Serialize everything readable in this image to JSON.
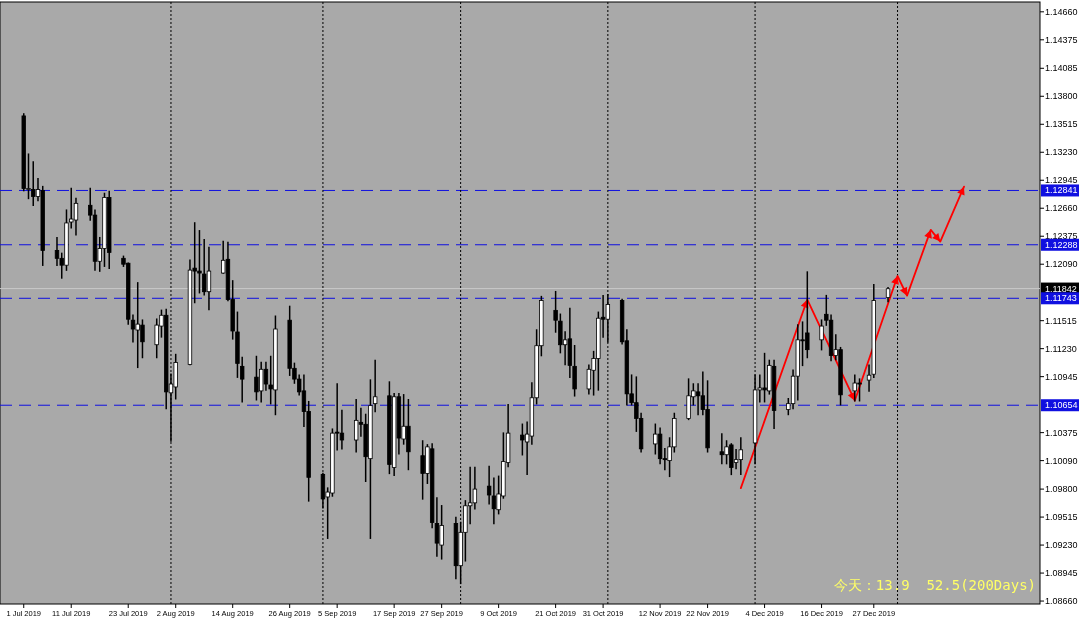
{
  "chart_data": {
    "type": "candlestick",
    "x": [
      "2019-07-01",
      "2019-07-02",
      "2019-07-03",
      "2019-07-04",
      "2019-07-05",
      "2019-07-08",
      "2019-07-09",
      "2019-07-10",
      "2019-07-11",
      "2019-07-12",
      "2019-07-15",
      "2019-07-16",
      "2019-07-17",
      "2019-07-18",
      "2019-07-19",
      "2019-07-22",
      "2019-07-23",
      "2019-07-24",
      "2019-07-25",
      "2019-07-26",
      "2019-07-29",
      "2019-07-30",
      "2019-07-31",
      "2019-08-01",
      "2019-08-02",
      "2019-08-05",
      "2019-08-06",
      "2019-08-07",
      "2019-08-08",
      "2019-08-09",
      "2019-08-12",
      "2019-08-13",
      "2019-08-14",
      "2019-08-15",
      "2019-08-16",
      "2019-08-19",
      "2019-08-20",
      "2019-08-21",
      "2019-08-22",
      "2019-08-23",
      "2019-08-26",
      "2019-08-27",
      "2019-08-28",
      "2019-08-29",
      "2019-08-30",
      "2019-09-02",
      "2019-09-03",
      "2019-09-04",
      "2019-09-05",
      "2019-09-06",
      "2019-09-09",
      "2019-09-10",
      "2019-09-11",
      "2019-09-12",
      "2019-09-13",
      "2019-09-16",
      "2019-09-17",
      "2019-09-18",
      "2019-09-19",
      "2019-09-20",
      "2019-09-23",
      "2019-09-24",
      "2019-09-25",
      "2019-09-26",
      "2019-09-27",
      "2019-09-30",
      "2019-10-01",
      "2019-10-02",
      "2019-10-03",
      "2019-10-04",
      "2019-10-07",
      "2019-10-08",
      "2019-10-09",
      "2019-10-10",
      "2019-10-11",
      "2019-10-14",
      "2019-10-15",
      "2019-10-16",
      "2019-10-17",
      "2019-10-18",
      "2019-10-21",
      "2019-10-22",
      "2019-10-23",
      "2019-10-24",
      "2019-10-25",
      "2019-10-28",
      "2019-10-29",
      "2019-10-30",
      "2019-10-31",
      "2019-11-01",
      "2019-11-04",
      "2019-11-05",
      "2019-11-06",
      "2019-11-07",
      "2019-11-08",
      "2019-11-11",
      "2019-11-12",
      "2019-11-13",
      "2019-11-14",
      "2019-11-15",
      "2019-11-18",
      "2019-11-19",
      "2019-11-20",
      "2019-11-21",
      "2019-11-22",
      "2019-11-25",
      "2019-11-26",
      "2019-11-27",
      "2019-11-28",
      "2019-11-29",
      "2019-12-02",
      "2019-12-03",
      "2019-12-04",
      "2019-12-05",
      "2019-12-06",
      "2019-12-09",
      "2019-12-10",
      "2019-12-11",
      "2019-12-12",
      "2019-12-13",
      "2019-12-16",
      "2019-12-17",
      "2019-12-18",
      "2019-12-19",
      "2019-12-20",
      "2019-12-23",
      "2019-12-24",
      "2019-12-26",
      "2019-12-27",
      "2019-12-30"
    ],
    "ohlc": [
      [
        1.136,
        1.1362,
        1.1284,
        1.1286
      ],
      [
        1.1285,
        1.1321,
        1.1276,
        1.1286
      ],
      [
        1.1285,
        1.1313,
        1.1269,
        1.1278
      ],
      [
        1.1278,
        1.1296,
        1.1274,
        1.1285
      ],
      [
        1.1284,
        1.1288,
        1.1208,
        1.1223
      ],
      [
        1.1223,
        1.1236,
        1.1208,
        1.1215
      ],
      [
        1.1215,
        1.122,
        1.1195,
        1.1208
      ],
      [
        1.1208,
        1.1264,
        1.1203,
        1.1251
      ],
      [
        1.1252,
        1.1286,
        1.1246,
        1.1255
      ],
      [
        1.1254,
        1.1276,
        1.1239,
        1.1271
      ],
      [
        1.1269,
        1.1286,
        1.1254,
        1.1259
      ],
      [
        1.1259,
        1.1264,
        1.1203,
        1.1212
      ],
      [
        1.1212,
        1.1236,
        1.1202,
        1.1225
      ],
      [
        1.1225,
        1.1281,
        1.1207,
        1.1277
      ],
      [
        1.1277,
        1.1283,
        1.1205,
        1.1221
      ],
      [
        1.1215,
        1.1217,
        1.1207,
        1.1209
      ],
      [
        1.121,
        1.121,
        1.1148,
        1.1153
      ],
      [
        1.1152,
        1.1157,
        1.113,
        1.1143
      ],
      [
        1.1142,
        1.119,
        1.1104,
        1.1148
      ],
      [
        1.1147,
        1.1152,
        1.1114,
        1.113
      ],
      [
        1.1127,
        1.1153,
        1.1114,
        1.1147
      ],
      [
        1.1146,
        1.1162,
        1.1135,
        1.1157
      ],
      [
        1.1157,
        1.1163,
        1.1062,
        1.1079
      ],
      [
        1.1078,
        1.1097,
        1.1029,
        1.1087
      ],
      [
        1.1084,
        1.1117,
        1.1072,
        1.1109
      ],
      [
        1.1107,
        1.1213,
        1.1107,
        1.1203
      ],
      [
        1.1205,
        1.1251,
        1.117,
        1.1202
      ],
      [
        1.1202,
        1.1243,
        1.118,
        1.12
      ],
      [
        1.1199,
        1.1234,
        1.1178,
        1.1181
      ],
      [
        1.1181,
        1.1226,
        1.1163,
        1.1202
      ],
      [
        1.12,
        1.1232,
        1.12,
        1.1213
      ],
      [
        1.1214,
        1.1231,
        1.1172,
        1.1173
      ],
      [
        1.1173,
        1.1192,
        1.1133,
        1.1141
      ],
      [
        1.114,
        1.116,
        1.1094,
        1.1108
      ],
      [
        1.1105,
        1.1114,
        1.1069,
        1.1092
      ],
      [
        1.1094,
        1.1115,
        1.1071,
        1.1079
      ],
      [
        1.108,
        1.1109,
        1.1069,
        1.1102
      ],
      [
        1.1102,
        1.1109,
        1.1081,
        1.1087
      ],
      [
        1.1086,
        1.1115,
        1.1067,
        1.1082
      ],
      [
        1.1081,
        1.1156,
        1.1056,
        1.1143
      ],
      [
        1.1152,
        1.1166,
        1.1096,
        1.1103
      ],
      [
        1.1103,
        1.1108,
        1.1088,
        1.1092
      ],
      [
        1.1092,
        1.1096,
        1.1076,
        1.1079
      ],
      [
        1.108,
        1.1096,
        1.1044,
        1.1059
      ],
      [
        1.1059,
        1.1069,
        1.0968,
        1.0992
      ],
      [
        1.0995,
        1.0996,
        1.0961,
        1.097
      ],
      [
        1.0972,
        1.0981,
        1.093,
        1.0977
      ],
      [
        1.0976,
        1.1041,
        1.0973,
        1.1037
      ],
      [
        1.1038,
        1.1087,
        1.102,
        1.1037
      ],
      [
        1.1037,
        1.106,
        1.1021,
        1.103
      ],
      [
        1.103,
        1.1071,
        1.1018,
        1.105
      ],
      [
        1.1048,
        1.1062,
        1.1034,
        1.1046
      ],
      [
        1.1046,
        1.1056,
        1.0988,
        1.1013
      ],
      [
        1.1011,
        1.1091,
        1.093,
        1.1065
      ],
      [
        1.1067,
        1.1111,
        1.1059,
        1.1074
      ],
      [
        1.1075,
        1.1089,
        1.0996,
        1.1005
      ],
      [
        1.1002,
        1.1077,
        1.0994,
        1.1074
      ],
      [
        1.1074,
        1.1077,
        1.1016,
        1.1032
      ],
      [
        1.1031,
        1.1076,
        1.1026,
        1.1044
      ],
      [
        1.1044,
        1.1071,
        1.1,
        1.1018
      ],
      [
        1.1014,
        1.1029,
        1.097,
        1.0996
      ],
      [
        1.0996,
        1.1025,
        1.0986,
        1.1023
      ],
      [
        1.1021,
        1.1026,
        1.0941,
        1.0946
      ],
      [
        1.0945,
        1.0971,
        1.0912,
        1.0925
      ],
      [
        1.0923,
        1.0963,
        1.0909,
        1.0943
      ],
      [
        1.0945,
        1.0951,
        1.0889,
        1.0902
      ],
      [
        1.0902,
        1.0946,
        1.0884,
        1.0936
      ],
      [
        1.0936,
        1.0968,
        1.0907,
        1.0963
      ],
      [
        1.0963,
        1.1002,
        1.0945,
        1.0966
      ],
      [
        1.0966,
        1.1002,
        1.096,
        1.098
      ],
      [
        1.0983,
        1.1003,
        1.0965,
        1.0974
      ],
      [
        1.0973,
        1.0991,
        1.0945,
        1.096
      ],
      [
        1.0959,
        1.0993,
        1.0955,
        1.0975
      ],
      [
        1.0973,
        1.1037,
        1.0971,
        1.1008
      ],
      [
        1.1007,
        1.1066,
        1.1003,
        1.1037
      ],
      [
        1.1035,
        1.1046,
        1.1015,
        1.103
      ],
      [
        1.1028,
        1.1048,
        1.0995,
        1.1036
      ],
      [
        1.1034,
        1.1088,
        1.1026,
        1.1073
      ],
      [
        1.1073,
        1.1142,
        1.1067,
        1.1126
      ],
      [
        1.1126,
        1.1176,
        1.1116,
        1.1172
      ],
      [
        1.1162,
        1.1181,
        1.114,
        1.1152
      ],
      [
        1.1151,
        1.1158,
        1.1119,
        1.1127
      ],
      [
        1.1127,
        1.114,
        1.1107,
        1.1132
      ],
      [
        1.1133,
        1.1164,
        1.1094,
        1.1106
      ],
      [
        1.1105,
        1.1126,
        1.1075,
        1.1082
      ],
      [
        1.1082,
        1.1106,
        1.1077,
        1.1102
      ],
      [
        1.1101,
        1.112,
        1.1076,
        1.1113
      ],
      [
        1.1113,
        1.116,
        1.1081,
        1.1154
      ],
      [
        1.1155,
        1.1177,
        1.1135,
        1.1153
      ],
      [
        1.1153,
        1.1178,
        1.113,
        1.1168
      ],
      [
        1.1172,
        1.1173,
        1.1128,
        1.113
      ],
      [
        1.1131,
        1.1142,
        1.1066,
        1.1077
      ],
      [
        1.1077,
        1.1096,
        1.1066,
        1.1068
      ],
      [
        1.1068,
        1.1094,
        1.1039,
        1.1052
      ],
      [
        1.1052,
        1.1057,
        1.1018,
        1.1021
      ],
      [
        1.1026,
        1.1046,
        1.1016,
        1.1036
      ],
      [
        1.1036,
        1.1042,
        1.1006,
        1.1011
      ],
      [
        1.1011,
        1.1021,
        1.1,
        1.101
      ],
      [
        1.1009,
        1.1032,
        1.0993,
        1.1023
      ],
      [
        1.1023,
        1.1057,
        1.1018,
        1.1052
      ],
      [
        1.1052,
        1.1092,
        1.1051,
        1.1075
      ],
      [
        1.1074,
        1.1087,
        1.1066,
        1.108
      ],
      [
        1.1079,
        1.1087,
        1.1056,
        1.1075
      ],
      [
        1.1075,
        1.1099,
        1.1056,
        1.1061
      ],
      [
        1.1061,
        1.109,
        1.1018,
        1.1022
      ],
      [
        1.1018,
        1.1036,
        1.1006,
        1.1015
      ],
      [
        1.1015,
        1.1029,
        1.1006,
        1.1023
      ],
      [
        1.1025,
        1.1026,
        1.0995,
        1.1002
      ],
      [
        1.1007,
        1.102,
        1.1001,
        1.101
      ],
      [
        1.101,
        1.1032,
        1.0995,
        1.102
      ],
      [
        1.1027,
        1.1096,
        1.1006,
        1.1081
      ],
      [
        1.1081,
        1.1096,
        1.1069,
        1.1083
      ],
      [
        1.1083,
        1.1118,
        1.1069,
        1.1081
      ],
      [
        1.108,
        1.1111,
        1.1077,
        1.1106
      ],
      [
        1.1105,
        1.1111,
        1.1042,
        1.106
      ],
      [
        1.1061,
        1.1072,
        1.1056,
        1.1067
      ],
      [
        1.1067,
        1.1101,
        1.1062,
        1.1095
      ],
      [
        1.1095,
        1.1147,
        1.1071,
        1.1132
      ],
      [
        1.1132,
        1.115,
        1.1106,
        1.1131
      ],
      [
        1.1139,
        1.1201,
        1.1114,
        1.1122
      ],
      [
        1.1132,
        1.1152,
        1.1122,
        1.1146
      ],
      [
        1.1158,
        1.1177,
        1.1147,
        1.1152
      ],
      [
        1.1152,
        1.1157,
        1.1111,
        1.1116
      ],
      [
        1.1116,
        1.1137,
        1.1112,
        1.1122
      ],
      [
        1.1122,
        1.1124,
        1.1066,
        1.1076
      ],
      [
        1.108,
        1.1096,
        1.107,
        1.1088
      ],
      [
        1.1088,
        1.1092,
        1.107,
        1.1087
      ],
      [
        1.1091,
        1.1106,
        1.108,
        1.1096
      ],
      [
        1.1097,
        1.1188,
        1.1094,
        1.1172
      ],
      [
        1.1175,
        1.1185,
        1.1171,
        1.1184
      ]
    ],
    "series": [
      {
        "type": "line",
        "color": "#ff0000",
        "x": [
          "2019-11-29",
          "2019-12-13",
          "2019-12-23",
          "2020-01-01",
          "2020-01-03",
          "2020-01-08",
          "2020-01-10",
          "2020-01-15"
        ],
        "values": [
          1.0981,
          1.1173,
          1.107,
          1.1197,
          1.1177,
          1.1244,
          1.1232,
          1.1288
        ]
      }
    ],
    "xlim": [
      "2019-06-26",
      "2020-01-31"
    ],
    "xticks": [
      {
        "value": "2019-07-01",
        "label": "1 Jul 2019"
      },
      {
        "value": "2019-07-11",
        "label": "11 Jul 2019"
      },
      {
        "value": "2019-07-23",
        "label": "23 Jul 2019"
      },
      {
        "value": "2019-08-02",
        "label": "2 Aug 2019"
      },
      {
        "value": "2019-08-14",
        "label": "14 Aug 2019"
      },
      {
        "value": "2019-08-26",
        "label": "26 Aug 2019"
      },
      {
        "value": "2019-09-05",
        "label": "5 Sep 2019"
      },
      {
        "value": "2019-09-17",
        "label": "17 Sep 2019"
      },
      {
        "value": "2019-09-27",
        "label": "27 Sep 2019"
      },
      {
        "value": "2019-10-09",
        "label": "9 Oct 2019"
      },
      {
        "value": "2019-10-21",
        "label": "21 Oct 2019"
      },
      {
        "value": "2019-10-31",
        "label": "31 Oct 2019"
      },
      {
        "value": "2019-11-12",
        "label": "12 Nov 2019"
      },
      {
        "value": "2019-11-22",
        "label": "22 Nov 2019"
      },
      {
        "value": "2019-12-04",
        "label": "4 Dec 2019"
      },
      {
        "value": "2019-12-16",
        "label": "16 Dec 2019"
      },
      {
        "value": "2019-12-27",
        "label": "27 Dec 2019"
      }
    ],
    "ylim": [
      1.0863,
      1.1476
    ],
    "yticks": [
      {
        "value": 1.1466,
        "label": "1.14660"
      },
      {
        "value": 1.14375,
        "label": "1.14375"
      },
      {
        "value": 1.14085,
        "label": "1.14085"
      },
      {
        "value": 1.138,
        "label": "1.13800"
      },
      {
        "value": 1.13515,
        "label": "1.13515"
      },
      {
        "value": 1.1323,
        "label": "1.13230"
      },
      {
        "value": 1.12945,
        "label": "1.12945"
      },
      {
        "value": 1.1266,
        "label": "1.12660"
      },
      {
        "value": 1.12375,
        "label": "1.12375"
      },
      {
        "value": 1.1209,
        "label": "1.12090"
      },
      {
        "value": 1.11515,
        "label": "1.11515"
      },
      {
        "value": 1.1123,
        "label": "1.11230"
      },
      {
        "value": 1.10945,
        "label": "1.10945"
      },
      {
        "value": 1.10375,
        "label": "1.10375"
      },
      {
        "value": 1.1009,
        "label": "1.10090"
      },
      {
        "value": 1.098,
        "label": "1.09800"
      },
      {
        "value": 1.09515,
        "label": "1.09515"
      },
      {
        "value": 1.0923,
        "label": "1.09230"
      },
      {
        "value": 1.08945,
        "label": "1.08945"
      },
      {
        "value": 1.0866,
        "label": "1.08660"
      }
    ],
    "ref_lines": [
      {
        "axis": "y",
        "value": 1.12841,
        "label": "1.12841",
        "color": "#1010e0",
        "line_style": "dashed"
      },
      {
        "axis": "y",
        "value": 1.12288,
        "label": "1.12288",
        "color": "#1010e0",
        "line_style": "dashed"
      },
      {
        "axis": "y",
        "value": 1.11842,
        "label": "1.11842",
        "color": "#c8c8c8",
        "line_style": "solid"
      },
      {
        "axis": "y",
        "value": 1.11743,
        "label": "1.11743",
        "color": "#1010e0",
        "line_style": "dashed"
      },
      {
        "axis": "y",
        "value": 1.10654,
        "label": "1.10654",
        "color": "#1010e0",
        "line_style": "dashed"
      },
      {
        "axis": "x",
        "value": "2019-08-01",
        "color": "#000000",
        "line_style": "dotted"
      },
      {
        "axis": "x",
        "value": "2019-09-02",
        "color": "#000000",
        "line_style": "dotted"
      },
      {
        "axis": "x",
        "value": "2019-10-01",
        "color": "#000000",
        "line_style": "dotted"
      },
      {
        "axis": "x",
        "value": "2019-11-01",
        "color": "#000000",
        "line_style": "dotted"
      },
      {
        "axis": "x",
        "value": "2019-12-02",
        "color": "#000000",
        "line_style": "dotted"
      },
      {
        "axis": "x",
        "value": "2020-01-01",
        "color": "#000000",
        "line_style": "dotted"
      }
    ],
    "annotations": [
      "今天：13.9  52.5(200Days)"
    ]
  }
}
